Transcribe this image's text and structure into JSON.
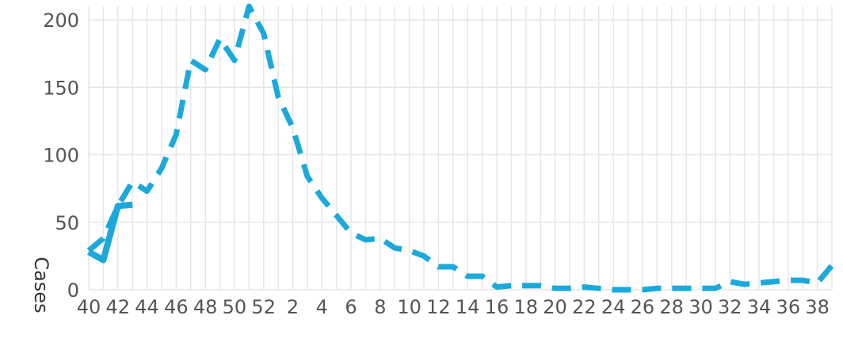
{
  "chart_data": {
    "type": "line",
    "ylabel": "Cases",
    "xlabel": "",
    "title": "",
    "ylim": [
      0,
      210
    ],
    "y_ticks": [
      0,
      50,
      100,
      150,
      200
    ],
    "x": [
      "40",
      "41",
      "42",
      "43",
      "44",
      "45",
      "46",
      "47",
      "48",
      "49",
      "50",
      "51",
      "52",
      "1",
      "2",
      "3",
      "4",
      "5",
      "6",
      "7",
      "8",
      "9",
      "10",
      "11",
      "12",
      "13",
      "14",
      "15",
      "16",
      "17",
      "18",
      "19",
      "20",
      "21",
      "22",
      "23",
      "24",
      "25",
      "26",
      "27",
      "28",
      "29",
      "30",
      "31",
      "32",
      "33",
      "34",
      "35",
      "36",
      "37",
      "38",
      "39"
    ],
    "x_tick_labels": [
      "40",
      "42",
      "44",
      "46",
      "48",
      "50",
      "52",
      "2",
      "4",
      "6",
      "8",
      "10",
      "12",
      "14",
      "16",
      "18",
      "20",
      "22",
      "24",
      "26",
      "28",
      "30",
      "32",
      "34",
      "36",
      "38"
    ],
    "grid": true,
    "color": "#1ba9dc",
    "series": [
      {
        "style": "dashed",
        "values": [
          29,
          38,
          62,
          80,
          73,
          90,
          115,
          170,
          163,
          186,
          170,
          210,
          190,
          143,
          120,
          84,
          68,
          55,
          42,
          37,
          38,
          31,
          29,
          25,
          17,
          17,
          10,
          10,
          2,
          3,
          3,
          3,
          1,
          1,
          2,
          1,
          0,
          0,
          0,
          1,
          1,
          1,
          1,
          1,
          6,
          4,
          5,
          6,
          7,
          7,
          5,
          18
        ]
      },
      {
        "style": "solid",
        "values": [
          28,
          22,
          62,
          63,
          null,
          null,
          null,
          null,
          null,
          null,
          null,
          null,
          null,
          null,
          null,
          null,
          null,
          null,
          null,
          null,
          null,
          null,
          null,
          null,
          null,
          null,
          null,
          null,
          null,
          null,
          null,
          null,
          null,
          null,
          null,
          null,
          null,
          null,
          null,
          null,
          null,
          null,
          null,
          null,
          null,
          null,
          null,
          null,
          null,
          null,
          null,
          null
        ]
      }
    ]
  }
}
